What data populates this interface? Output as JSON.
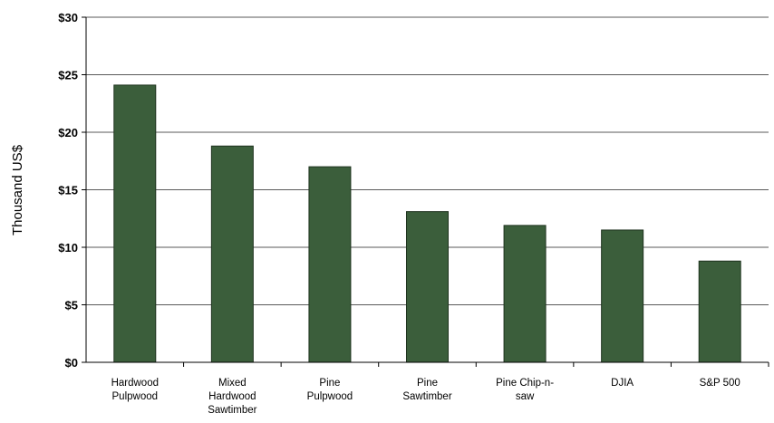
{
  "chart_data": {
    "type": "bar",
    "title": "",
    "xlabel": "",
    "ylabel": "Thousand US$",
    "ylim": [
      0,
      30
    ],
    "yticks": [
      0,
      5,
      10,
      15,
      20,
      25,
      30
    ],
    "ytick_labels": [
      "$0",
      "$5",
      "$10",
      "$15",
      "$20",
      "$25",
      "$30"
    ],
    "categories": [
      [
        "Hardwood",
        "Pulpwood"
      ],
      [
        "Mixed",
        "Hardwood",
        "Sawtimber"
      ],
      [
        "Pine",
        "Pulpwood"
      ],
      [
        "Pine",
        "Sawtimber"
      ],
      [
        "Pine Chip-n-",
        "saw"
      ],
      [
        "DJIA"
      ],
      [
        "S&P 500"
      ]
    ],
    "values": [
      24.1,
      18.8,
      17.0,
      13.1,
      11.9,
      11.5,
      8.8
    ],
    "bar_color": "#3b5e3b",
    "grid": true
  }
}
